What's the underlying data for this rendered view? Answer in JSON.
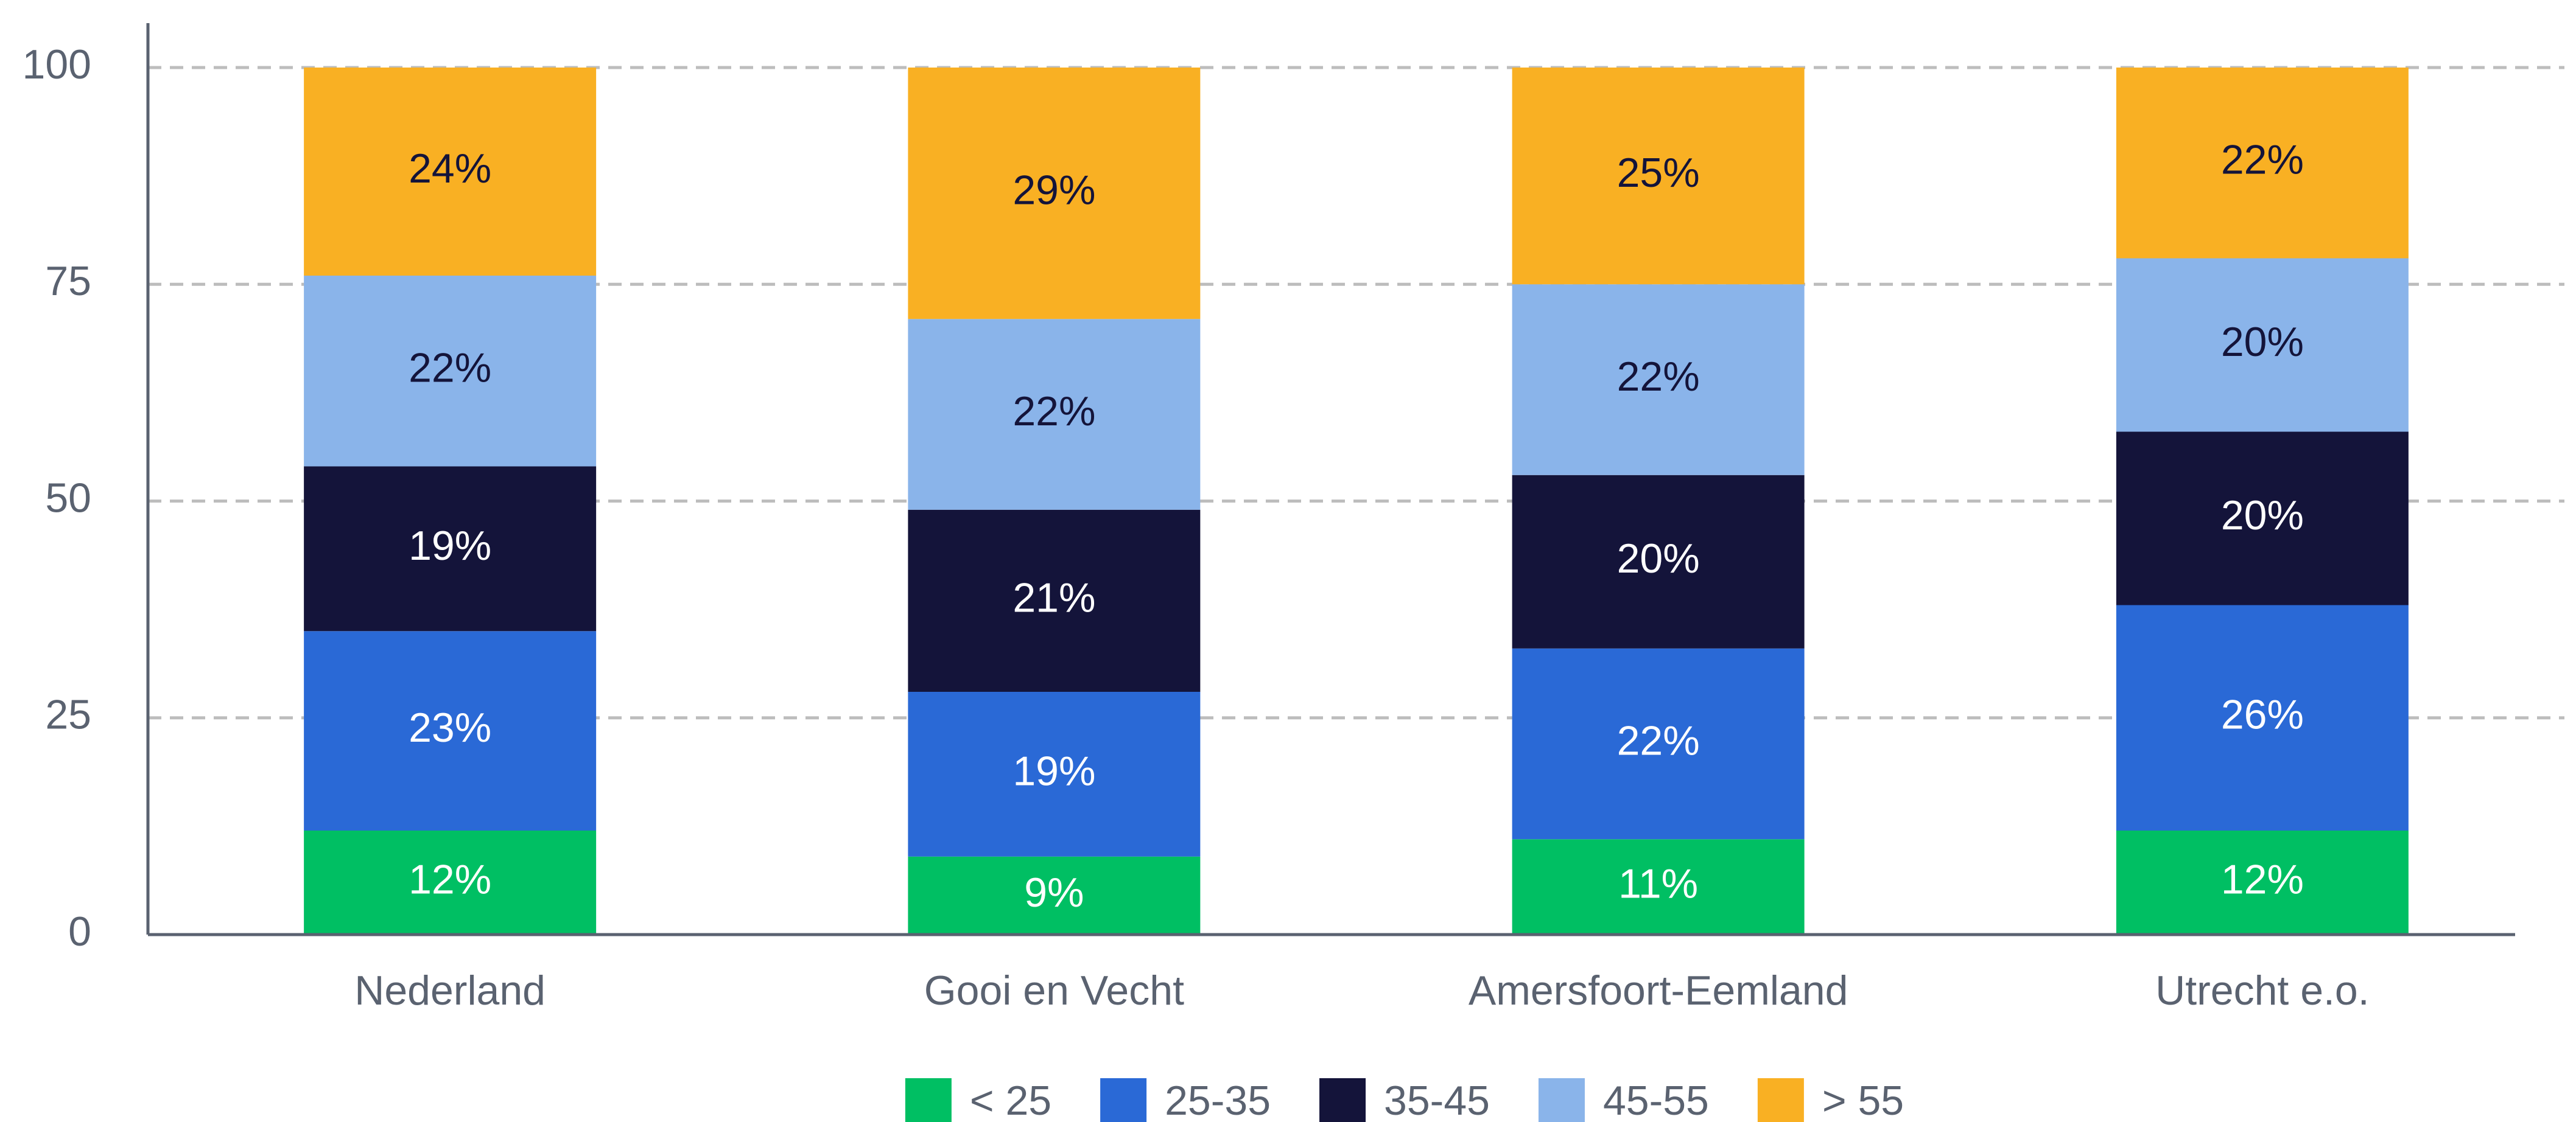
{
  "chart_data": {
    "type": "stacked_bar",
    "categories": [
      "Nederland",
      "Gooi en Vecht",
      "Amersfoort-Eemland",
      "Utrecht e.o."
    ],
    "series": [
      {
        "name": "< 25",
        "color": "#00bf63",
        "values": [
          12,
          9,
          11,
          12
        ],
        "value_labels": [
          "12%",
          "9%",
          "11%",
          "12%"
        ]
      },
      {
        "name": "25-35",
        "color": "#2a69d6",
        "values": [
          23,
          19,
          22,
          26
        ],
        "value_labels": [
          "23%",
          "19%",
          "22%",
          "26%"
        ]
      },
      {
        "name": "35-45",
        "color": "#14143a",
        "values": [
          19,
          21,
          20,
          20
        ],
        "value_labels": [
          "19%",
          "21%",
          "20%",
          "20%"
        ]
      },
      {
        "name": "45-55",
        "color": "#8ab4ea",
        "values": [
          22,
          22,
          22,
          20
        ],
        "value_labels": [
          "22%",
          "22%",
          "22%",
          "20%"
        ]
      },
      {
        "name": "> 55",
        "color": "#f9b023",
        "values": [
          24,
          29,
          25,
          22
        ],
        "value_labels": [
          "24%",
          "29%",
          "25%",
          "22%"
        ]
      }
    ],
    "ylim": [
      0,
      100
    ],
    "yticks": [
      0,
      25,
      50,
      75,
      100
    ],
    "grid": true,
    "legend": "bottom"
  }
}
